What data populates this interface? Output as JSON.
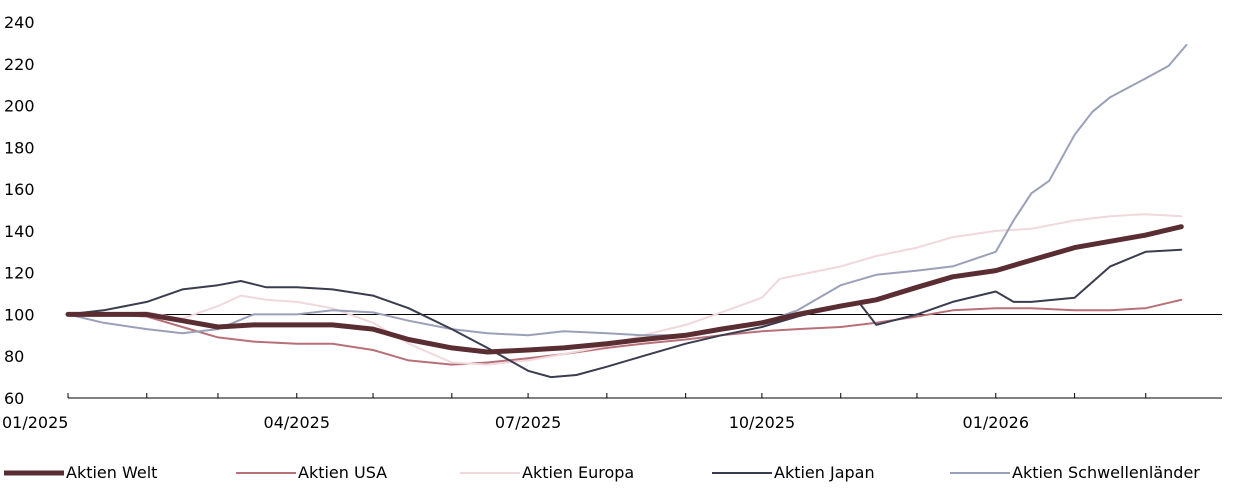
{
  "chart_data": {
    "type": "line",
    "title": "",
    "xlabel": "",
    "ylabel": "",
    "ylim": [
      60,
      240
    ],
    "yticks": [
      60,
      80,
      100,
      120,
      140,
      160,
      180,
      200,
      220,
      240
    ],
    "xlim": [
      "2025-01-01",
      "2026-03-31"
    ],
    "xticks": [
      {
        "date": "2025-01-01",
        "label": "01/2025"
      },
      {
        "date": "2025-04-01",
        "label": "04/2025"
      },
      {
        "date": "2025-07-01",
        "label": "07/2025"
      },
      {
        "date": "2025-10-01",
        "label": "10/2025"
      },
      {
        "date": "2026-01-01",
        "label": "01/2026"
      }
    ],
    "reference_line": 100,
    "grid": "vertical minor ticks only",
    "legend_position": "bottom",
    "series": [
      {
        "name": "Aktien Welt",
        "color": "#5a2d33",
        "width": 5,
        "points": [
          [
            "2025-01-01",
            100
          ],
          [
            "2025-01-15",
            100
          ],
          [
            "2025-02-01",
            100
          ],
          [
            "2025-02-15",
            97
          ],
          [
            "2025-03-01",
            94
          ],
          [
            "2025-03-15",
            95
          ],
          [
            "2025-04-01",
            95
          ],
          [
            "2025-04-15",
            95
          ],
          [
            "2025-05-01",
            93
          ],
          [
            "2025-05-15",
            88
          ],
          [
            "2025-06-01",
            84
          ],
          [
            "2025-06-15",
            82
          ],
          [
            "2025-07-01",
            83
          ],
          [
            "2025-07-15",
            84
          ],
          [
            "2025-08-01",
            86
          ],
          [
            "2025-08-15",
            88
          ],
          [
            "2025-09-01",
            90
          ],
          [
            "2025-09-15",
            93
          ],
          [
            "2025-10-01",
            96
          ],
          [
            "2025-10-15",
            100
          ],
          [
            "2025-11-01",
            104
          ],
          [
            "2025-11-15",
            107
          ],
          [
            "2025-12-01",
            113
          ],
          [
            "2025-12-15",
            118
          ],
          [
            "2026-01-01",
            121
          ],
          [
            "2026-01-15",
            126
          ],
          [
            "2026-02-01",
            132
          ],
          [
            "2026-02-15",
            135
          ],
          [
            "2026-03-01",
            138
          ],
          [
            "2026-03-15",
            142
          ]
        ]
      },
      {
        "name": "Aktien USA",
        "color": "#b87078",
        "width": 2,
        "points": [
          [
            "2025-01-01",
            100
          ],
          [
            "2025-01-15",
            100
          ],
          [
            "2025-02-01",
            99
          ],
          [
            "2025-02-15",
            94
          ],
          [
            "2025-03-01",
            89
          ],
          [
            "2025-03-15",
            87
          ],
          [
            "2025-04-01",
            86
          ],
          [
            "2025-04-15",
            86
          ],
          [
            "2025-05-01",
            83
          ],
          [
            "2025-05-15",
            78
          ],
          [
            "2025-06-01",
            76
          ],
          [
            "2025-06-15",
            77
          ],
          [
            "2025-07-01",
            79
          ],
          [
            "2025-07-15",
            81
          ],
          [
            "2025-08-01",
            84
          ],
          [
            "2025-08-15",
            86
          ],
          [
            "2025-09-01",
            88
          ],
          [
            "2025-09-15",
            90
          ],
          [
            "2025-10-01",
            92
          ],
          [
            "2025-10-15",
            93
          ],
          [
            "2025-11-01",
            94
          ],
          [
            "2025-11-15",
            96
          ],
          [
            "2025-12-01",
            99
          ],
          [
            "2025-12-15",
            102
          ],
          [
            "2026-01-01",
            103
          ],
          [
            "2026-01-15",
            103
          ],
          [
            "2026-02-01",
            102
          ],
          [
            "2026-02-15",
            102
          ],
          [
            "2026-03-01",
            103
          ],
          [
            "2026-03-15",
            107
          ]
        ]
      },
      {
        "name": "Aktien Europa",
        "color": "#f0d8dc",
        "width": 2,
        "points": [
          [
            "2025-01-01",
            100
          ],
          [
            "2025-01-15",
            100
          ],
          [
            "2025-02-01",
            101
          ],
          [
            "2025-02-15",
            98
          ],
          [
            "2025-03-01",
            104
          ],
          [
            "2025-03-10",
            109
          ],
          [
            "2025-03-20",
            107
          ],
          [
            "2025-04-01",
            106
          ],
          [
            "2025-04-15",
            103
          ],
          [
            "2025-05-01",
            96
          ],
          [
            "2025-05-15",
            86
          ],
          [
            "2025-06-01",
            77
          ],
          [
            "2025-06-15",
            76
          ],
          [
            "2025-07-01",
            78
          ],
          [
            "2025-07-15",
            81
          ],
          [
            "2025-08-01",
            85
          ],
          [
            "2025-08-15",
            90
          ],
          [
            "2025-09-01",
            95
          ],
          [
            "2025-09-15",
            101
          ],
          [
            "2025-10-01",
            108
          ],
          [
            "2025-10-08",
            117
          ],
          [
            "2025-11-01",
            123
          ],
          [
            "2025-11-15",
            128
          ],
          [
            "2025-12-01",
            132
          ],
          [
            "2025-12-15",
            137
          ],
          [
            "2026-01-01",
            140
          ],
          [
            "2026-01-15",
            141
          ],
          [
            "2026-02-01",
            145
          ],
          [
            "2026-02-15",
            147
          ],
          [
            "2026-03-01",
            148
          ],
          [
            "2026-03-15",
            147
          ]
        ]
      },
      {
        "name": "Aktien Japan",
        "color": "#3a3d4e",
        "width": 2,
        "points": [
          [
            "2025-01-01",
            100
          ],
          [
            "2025-01-15",
            102
          ],
          [
            "2025-02-01",
            106
          ],
          [
            "2025-02-15",
            112
          ],
          [
            "2025-03-01",
            114
          ],
          [
            "2025-03-10",
            116
          ],
          [
            "2025-03-20",
            113
          ],
          [
            "2025-04-01",
            113
          ],
          [
            "2025-04-15",
            112
          ],
          [
            "2025-05-01",
            109
          ],
          [
            "2025-05-15",
            103
          ],
          [
            "2025-06-01",
            93
          ],
          [
            "2025-06-15",
            84
          ],
          [
            "2025-07-01",
            73
          ],
          [
            "2025-07-10",
            70
          ],
          [
            "2025-07-20",
            71
          ],
          [
            "2025-08-01",
            75
          ],
          [
            "2025-08-15",
            80
          ],
          [
            "2025-09-01",
            86
          ],
          [
            "2025-09-15",
            90
          ],
          [
            "2025-10-01",
            94
          ],
          [
            "2025-10-15",
            99
          ],
          [
            "2025-11-01",
            104
          ],
          [
            "2025-11-08",
            106
          ],
          [
            "2025-11-15",
            95
          ],
          [
            "2025-12-01",
            100
          ],
          [
            "2025-12-15",
            106
          ],
          [
            "2026-01-01",
            111
          ],
          [
            "2026-01-08",
            106
          ],
          [
            "2026-01-15",
            106
          ],
          [
            "2026-02-01",
            108
          ],
          [
            "2026-02-15",
            123
          ],
          [
            "2026-03-01",
            130
          ],
          [
            "2026-03-15",
            131
          ]
        ]
      },
      {
        "name": "Aktien Schwellenländer",
        "color": "#9aa0b8",
        "width": 2,
        "points": [
          [
            "2025-01-01",
            100
          ],
          [
            "2025-01-15",
            96
          ],
          [
            "2025-02-01",
            93
          ],
          [
            "2025-02-15",
            91
          ],
          [
            "2025-03-01",
            93
          ],
          [
            "2025-03-15",
            100
          ],
          [
            "2025-04-01",
            100
          ],
          [
            "2025-04-15",
            102
          ],
          [
            "2025-05-01",
            101
          ],
          [
            "2025-05-15",
            97
          ],
          [
            "2025-06-01",
            93
          ],
          [
            "2025-06-15",
            91
          ],
          [
            "2025-07-01",
            90
          ],
          [
            "2025-07-15",
            92
          ],
          [
            "2025-08-01",
            91
          ],
          [
            "2025-08-15",
            90
          ],
          [
            "2025-09-01",
            90
          ],
          [
            "2025-09-15",
            93
          ],
          [
            "2025-10-01",
            96
          ],
          [
            "2025-10-15",
            102
          ],
          [
            "2025-11-01",
            114
          ],
          [
            "2025-11-15",
            119
          ],
          [
            "2025-12-01",
            121
          ],
          [
            "2025-12-15",
            123
          ],
          [
            "2026-01-01",
            130
          ],
          [
            "2026-01-08",
            145
          ],
          [
            "2026-01-15",
            158
          ],
          [
            "2026-01-22",
            164
          ],
          [
            "2026-02-01",
            186
          ],
          [
            "2026-02-08",
            197
          ],
          [
            "2026-02-15",
            204
          ],
          [
            "2026-03-01",
            213
          ],
          [
            "2026-03-10",
            219
          ],
          [
            "2026-03-17",
            229
          ]
        ]
      }
    ]
  }
}
